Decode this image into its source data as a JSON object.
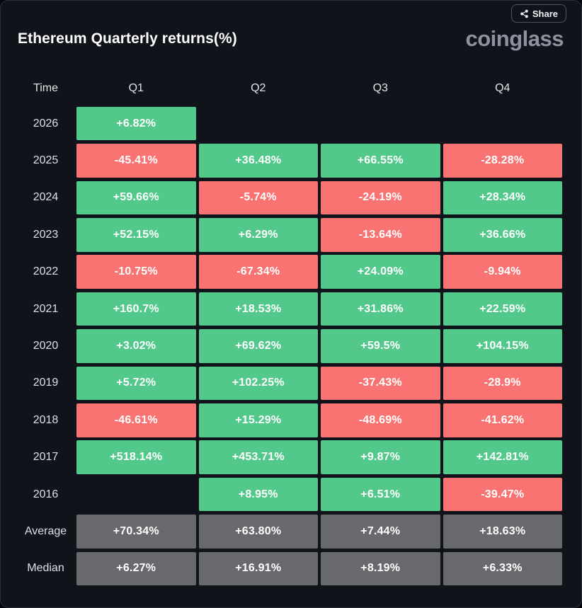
{
  "header": {
    "title": "Ethereum Quarterly returns(%)",
    "logo": "coinglass",
    "share_label": "Share"
  },
  "colors": {
    "positive": "#52c98b",
    "negative": "#f97373",
    "neutral": "#67696c",
    "background": "#10131a",
    "cell_text": "#ffffff"
  },
  "chart_data": {
    "type": "table",
    "title": "Ethereum Quarterly returns(%)",
    "columns": [
      "Time",
      "Q1",
      "Q2",
      "Q3",
      "Q4"
    ],
    "color_rule": "green = positive return, red = negative return, gray = summary rows",
    "rows": [
      {
        "label": "2026",
        "values": [
          "+6.82%",
          null,
          null,
          null
        ]
      },
      {
        "label": "2025",
        "values": [
          "-45.41%",
          "+36.48%",
          "+66.55%",
          "-28.28%"
        ]
      },
      {
        "label": "2024",
        "values": [
          "+59.66%",
          "-5.74%",
          "-24.19%",
          "+28.34%"
        ]
      },
      {
        "label": "2023",
        "values": [
          "+52.15%",
          "+6.29%",
          "-13.64%",
          "+36.66%"
        ]
      },
      {
        "label": "2022",
        "values": [
          "-10.75%",
          "-67.34%",
          "+24.09%",
          "-9.94%"
        ]
      },
      {
        "label": "2021",
        "values": [
          "+160.7%",
          "+18.53%",
          "+31.86%",
          "+22.59%"
        ]
      },
      {
        "label": "2020",
        "values": [
          "+3.02%",
          "+69.62%",
          "+59.5%",
          "+104.15%"
        ]
      },
      {
        "label": "2019",
        "values": [
          "+5.72%",
          "+102.25%",
          "-37.43%",
          "-28.9%"
        ]
      },
      {
        "label": "2018",
        "values": [
          "-46.61%",
          "+15.29%",
          "-48.69%",
          "-41.62%"
        ]
      },
      {
        "label": "2017",
        "values": [
          "+518.14%",
          "+453.71%",
          "+9.87%",
          "+142.81%"
        ]
      },
      {
        "label": "2016",
        "values": [
          null,
          "+8.95%",
          "+6.51%",
          "-39.47%"
        ]
      },
      {
        "label": "Average",
        "values": [
          "+70.34%",
          "+63.80%",
          "+7.44%",
          "+18.63%"
        ],
        "style": "neutral"
      },
      {
        "label": "Median",
        "values": [
          "+6.27%",
          "+16.91%",
          "+8.19%",
          "+6.33%"
        ],
        "style": "neutral"
      }
    ]
  }
}
